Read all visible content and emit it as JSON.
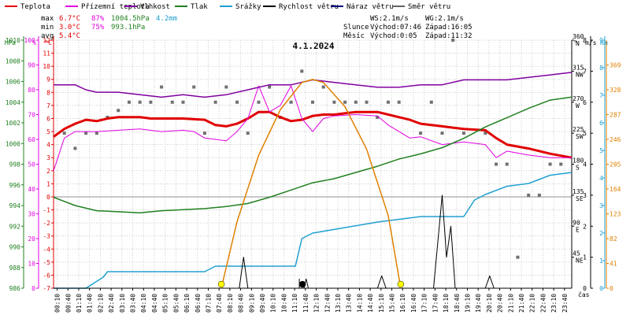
{
  "legend": [
    {
      "label": "Teplota",
      "color": "#e00000"
    },
    {
      "label": "Přízemní teplota",
      "color": "#e000e0"
    },
    {
      "label": "Vlhkost",
      "color": "#8000a0"
    },
    {
      "label": "Tlak",
      "color": "#208020"
    },
    {
      "label": "Srážky",
      "color": "#20a0d0"
    },
    {
      "label": "Rychlost větru",
      "color": "#000000"
    },
    {
      "label": "Náraz větru",
      "color": "#000080"
    },
    {
      "label": "Směr větru",
      "color": "#606060"
    }
  ],
  "stats": {
    "max": {
      "label": "max",
      "temp": "6.7°C",
      "hum": "87%",
      "press": "1004.5hPa",
      "rain": "4.2mm"
    },
    "min": {
      "label": "min",
      "temp": "3.0°C",
      "hum": "75%",
      "press": "993.1hPa"
    },
    "avg": {
      "label": "avg",
      "temp": "5.4°C"
    }
  },
  "info": {
    "ws": "WS:2.1m/s",
    "wg": "WG:2.1m/s",
    "sun_label": "Slunce",
    "sun_rise": "Východ:07:46",
    "sun_set": "Západ:16:05",
    "moon_label": "Měsíc",
    "moon_rise": "Východ:0:05",
    "moon_set": "Západ:11:32"
  },
  "chart_data": {
    "type": "line",
    "title": "4.1.2024",
    "x_unit": "čas",
    "x_ticks": [
      "00:10",
      "00:40",
      "01:10",
      "01:40",
      "02:10",
      "02:40",
      "03:10",
      "03:40",
      "04:10",
      "04:40",
      "05:10",
      "05:40",
      "06:10",
      "06:40",
      "07:10",
      "07:40",
      "08:10",
      "08:40",
      "09:10",
      "09:40",
      "10:10",
      "10:40",
      "11:10",
      "11:40",
      "12:10",
      "12:40",
      "13:10",
      "13:40",
      "14:10",
      "14:40",
      "15:10",
      "15:40",
      "16:10",
      "16:40",
      "17:10",
      "17:40",
      "18:10",
      "18:40",
      "19:10",
      "19:40",
      "20:10",
      "20:40",
      "21:10",
      "21:40",
      "22:10",
      "22:40",
      "23:10",
      "23:40"
    ],
    "axes": {
      "pressure": {
        "unit": "hPa",
        "range": [
          986,
          1010
        ],
        "ticks": [
          986,
          988,
          990,
          992,
          994,
          996,
          998,
          1000,
          1002,
          1004,
          1006,
          1008,
          1010
        ],
        "color": "#208020"
      },
      "humidity": {
        "unit": "%",
        "range": [
          0,
          100
        ],
        "ticks": [
          0,
          10,
          20,
          30,
          40,
          50,
          60,
          70,
          80,
          90,
          100
        ],
        "color": "#e000e0"
      },
      "temperature": {
        "unit": "°C",
        "range": [
          -7,
          12
        ],
        "ticks": [
          -7,
          -6,
          -5,
          -4,
          -3,
          -2,
          -1,
          0,
          1,
          2,
          3,
          4,
          5,
          6,
          7,
          8,
          9,
          10,
          11,
          12
        ],
        "color": "#e00000"
      },
      "wind_dir": {
        "unit": "°",
        "range": [
          0,
          360
        ],
        "ticks": [
          {
            "v": 45,
            "d": "NE"
          },
          {
            "v": 90,
            "d": "E"
          },
          {
            "v": 135,
            "d": "SE"
          },
          {
            "v": 180,
            "d": "S"
          },
          {
            "v": 225,
            "d": "SW"
          },
          {
            "v": 270,
            "d": "W"
          },
          {
            "v": 315,
            "d": "NW"
          },
          {
            "v": 360,
            "d": "N"
          }
        ]
      },
      "wind_speed": {
        "unit": "m/s",
        "range": [
          0,
          8
        ],
        "ticks": [
          0,
          1,
          2,
          3,
          4,
          5,
          6,
          7,
          8
        ],
        "color": "#000000"
      },
      "rain": {
        "unit": "mm",
        "range": [
          0,
          9
        ],
        "ticks": [
          0,
          1,
          2,
          3,
          4,
          5,
          6,
          7,
          8,
          9
        ],
        "color": "#20a0d0"
      },
      "sun_elev": {
        "range": [
          0,
          410
        ],
        "ticks": [
          0,
          41,
          82,
          123,
          164,
          205,
          246,
          287,
          328,
          369
        ],
        "color": "#e08000"
      }
    },
    "series": [
      {
        "name": "Teplota",
        "unit": "°C",
        "color": "#e00000",
        "points": [
          [
            0,
            4.6
          ],
          [
            0.5,
            5.2
          ],
          [
            1,
            5.6
          ],
          [
            1.5,
            5.9
          ],
          [
            2,
            5.8
          ],
          [
            2.5,
            6.0
          ],
          [
            3,
            6.1
          ],
          [
            3.5,
            6.1
          ],
          [
            4,
            6.1
          ],
          [
            4.5,
            6.0
          ],
          [
            5,
            6.0
          ],
          [
            6,
            6.0
          ],
          [
            7,
            5.9
          ],
          [
            7.5,
            5.5
          ],
          [
            8,
            5.4
          ],
          [
            8.5,
            5.6
          ],
          [
            9,
            6.0
          ],
          [
            9.5,
            6.5
          ],
          [
            10,
            6.5
          ],
          [
            10.5,
            6.1
          ],
          [
            11,
            5.8
          ],
          [
            11.5,
            5.9
          ],
          [
            12,
            6.2
          ],
          [
            12.5,
            6.3
          ],
          [
            13,
            6.3
          ],
          [
            14,
            6.5
          ],
          [
            15,
            6.5
          ],
          [
            15.5,
            6.3
          ],
          [
            16,
            6.1
          ],
          [
            16.5,
            5.9
          ],
          [
            17,
            5.6
          ],
          [
            17.5,
            5.5
          ],
          [
            18,
            5.4
          ],
          [
            18.5,
            5.3
          ],
          [
            19,
            5.2
          ],
          [
            20,
            5.1
          ],
          [
            20.5,
            4.5
          ],
          [
            21,
            4.0
          ],
          [
            22,
            3.7
          ],
          [
            23,
            3.3
          ],
          [
            24,
            3.0
          ]
        ]
      },
      {
        "name": "Přízemní teplota",
        "unit": "°C",
        "color": "#e000e0",
        "points": [
          [
            0,
            2.0
          ],
          [
            0.5,
            4.5
          ],
          [
            1,
            5.0
          ],
          [
            2,
            5.0
          ],
          [
            3,
            5.1
          ],
          [
            4,
            5.2
          ],
          [
            5,
            5.0
          ],
          [
            6,
            5.1
          ],
          [
            6.5,
            5.0
          ],
          [
            7,
            4.5
          ],
          [
            8,
            4.3
          ],
          [
            8.5,
            5.0
          ],
          [
            9,
            6.0
          ],
          [
            9.5,
            8.5
          ],
          [
            10,
            6.5
          ],
          [
            10.5,
            7.0
          ],
          [
            11,
            8.5
          ],
          [
            11.5,
            6.0
          ],
          [
            12,
            5.0
          ],
          [
            12.5,
            6.0
          ],
          [
            13,
            6.2
          ],
          [
            14,
            6.3
          ],
          [
            15,
            6.2
          ],
          [
            15.5,
            5.5
          ],
          [
            16,
            5.0
          ],
          [
            16.5,
            4.5
          ],
          [
            17,
            4.6
          ],
          [
            18,
            4.0
          ],
          [
            19,
            4.2
          ],
          [
            20,
            4.0
          ],
          [
            20.5,
            3.0
          ],
          [
            21,
            3.5
          ],
          [
            22,
            3.2
          ],
          [
            23,
            3.0
          ],
          [
            24,
            3.0
          ]
        ]
      },
      {
        "name": "Vlhkost",
        "unit": "%",
        "color": "#8000a0",
        "points": [
          [
            0,
            82
          ],
          [
            1,
            82
          ],
          [
            1.5,
            80
          ],
          [
            2,
            79
          ],
          [
            3,
            79
          ],
          [
            4,
            78
          ],
          [
            5,
            77
          ],
          [
            6,
            78
          ],
          [
            7,
            77
          ],
          [
            8,
            78
          ],
          [
            9,
            80
          ],
          [
            10,
            82
          ],
          [
            11,
            82
          ],
          [
            12,
            84
          ],
          [
            13,
            83
          ],
          [
            14,
            82
          ],
          [
            15,
            81
          ],
          [
            16,
            81
          ],
          [
            17,
            82
          ],
          [
            18,
            82
          ],
          [
            19,
            84
          ],
          [
            20,
            84
          ],
          [
            21,
            84
          ],
          [
            22,
            85
          ],
          [
            23,
            86
          ],
          [
            24,
            87
          ]
        ]
      },
      {
        "name": "Tlak",
        "unit": "hPa",
        "color": "#208020",
        "points": [
          [
            0,
            994.8
          ],
          [
            1,
            994.0
          ],
          [
            2,
            993.5
          ],
          [
            3,
            993.4
          ],
          [
            4,
            993.3
          ],
          [
            5,
            993.5
          ],
          [
            6,
            993.6
          ],
          [
            7,
            993.7
          ],
          [
            8,
            993.9
          ],
          [
            9,
            994.2
          ],
          [
            10,
            994.8
          ],
          [
            11,
            995.5
          ],
          [
            12,
            996.2
          ],
          [
            13,
            996.6
          ],
          [
            14,
            997.2
          ],
          [
            15,
            997.8
          ],
          [
            16,
            998.5
          ],
          [
            17,
            999.0
          ],
          [
            18,
            999.6
          ],
          [
            19,
            1000.5
          ],
          [
            20,
            1001.6
          ],
          [
            21,
            1002.5
          ],
          [
            22,
            1003.4
          ],
          [
            23,
            1004.2
          ],
          [
            24,
            1004.5
          ]
        ]
      },
      {
        "name": "Srážky",
        "unit": "mm",
        "color": "#20a0d0",
        "points": [
          [
            0,
            0
          ],
          [
            1.5,
            0
          ],
          [
            2.3,
            0.4
          ],
          [
            2.5,
            0.6
          ],
          [
            7,
            0.6
          ],
          [
            7.5,
            0.8
          ],
          [
            11.2,
            0.8
          ],
          [
            11.5,
            1.8
          ],
          [
            12,
            2.0
          ],
          [
            15,
            2.4
          ],
          [
            16,
            2.5
          ],
          [
            17,
            2.6
          ],
          [
            19,
            2.6
          ],
          [
            19.5,
            3.2
          ],
          [
            20,
            3.4
          ],
          [
            21,
            3.7
          ],
          [
            22,
            3.8
          ],
          [
            23,
            4.1
          ],
          [
            24,
            4.2
          ]
        ]
      },
      {
        "name": "Rychlost větru",
        "unit": "m/s",
        "color": "#000000",
        "points": [
          [
            0,
            0
          ],
          [
            8.6,
            0
          ],
          [
            8.8,
            1.0
          ],
          [
            9.0,
            0
          ],
          [
            11.6,
            0
          ],
          [
            11.7,
            0.3
          ],
          [
            11.8,
            0
          ],
          [
            15.0,
            0
          ],
          [
            15.2,
            0.4
          ],
          [
            15.4,
            0
          ],
          [
            17.6,
            0
          ],
          [
            18.0,
            3.0
          ],
          [
            18.2,
            1.0
          ],
          [
            18.4,
            2.0
          ],
          [
            18.6,
            0
          ],
          [
            20.0,
            0
          ],
          [
            20.2,
            0.4
          ],
          [
            20.4,
            0
          ],
          [
            24,
            0
          ]
        ]
      },
      {
        "name": "Sluneční výška",
        "color": "#e08000",
        "points": [
          [
            7.77,
            0
          ],
          [
            8.5,
            110
          ],
          [
            9.5,
            220
          ],
          [
            10.5,
            295
          ],
          [
            11.5,
            340
          ],
          [
            12.0,
            345
          ],
          [
            12.5,
            340
          ],
          [
            13.5,
            300
          ],
          [
            14.5,
            230
          ],
          [
            15.5,
            120
          ],
          [
            16.08,
            0
          ]
        ]
      }
    ],
    "wind_direction_points": [
      [
        0.5,
        225
      ],
      [
        1.0,
        203
      ],
      [
        1.5,
        225
      ],
      [
        2.0,
        225
      ],
      [
        2.5,
        248
      ],
      [
        3.0,
        258
      ],
      [
        3.5,
        270
      ],
      [
        4.0,
        270
      ],
      [
        4.5,
        270
      ],
      [
        5.0,
        292
      ],
      [
        5.5,
        270
      ],
      [
        6.0,
        270
      ],
      [
        6.5,
        292
      ],
      [
        7.0,
        225
      ],
      [
        7.5,
        270
      ],
      [
        8.0,
        292
      ],
      [
        8.5,
        270
      ],
      [
        9.0,
        225
      ],
      [
        9.5,
        270
      ],
      [
        10.0,
        292
      ],
      [
        10.5,
        248
      ],
      [
        11.0,
        270
      ],
      [
        11.5,
        315
      ],
      [
        12.0,
        270
      ],
      [
        12.5,
        292
      ],
      [
        13.0,
        270
      ],
      [
        13.5,
        270
      ],
      [
        14.0,
        270
      ],
      [
        14.5,
        270
      ],
      [
        15.0,
        248
      ],
      [
        15.5,
        270
      ],
      [
        16.0,
        270
      ],
      [
        17.0,
        225
      ],
      [
        17.5,
        270
      ],
      [
        18.0,
        225
      ],
      [
        18.5,
        360
      ],
      [
        19.0,
        225
      ],
      [
        20.0,
        225
      ],
      [
        20.5,
        180
      ],
      [
        21.0,
        180
      ],
      [
        21.5,
        45
      ],
      [
        22.0,
        135
      ],
      [
        22.5,
        135
      ],
      [
        23.0,
        180
      ],
      [
        23.5,
        180
      ]
    ],
    "markers": [
      {
        "label": "sunrise",
        "x": 7.77,
        "color": "#ffff00"
      },
      {
        "label": "sunset",
        "x": 16.08,
        "color": "#ffff00"
      },
      {
        "label": "moonset",
        "x": 11.53,
        "color": "#000000"
      }
    ]
  }
}
